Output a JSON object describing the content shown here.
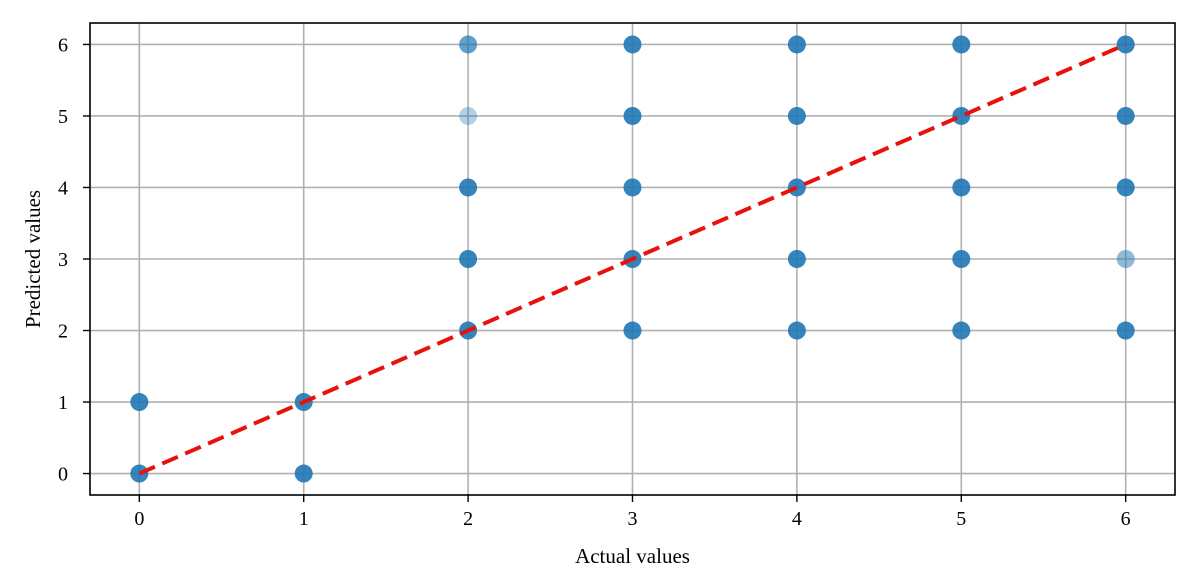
{
  "chart_data": {
    "type": "scatter",
    "title": "",
    "xlabel": "Actual values",
    "ylabel": "Predicted values",
    "xlim": [
      -0.3,
      6.3
    ],
    "ylim": [
      -0.3,
      6.3
    ],
    "xticks": [
      0,
      1,
      2,
      3,
      4,
      5,
      6
    ],
    "yticks": [
      0,
      1,
      2,
      3,
      4,
      5,
      6
    ],
    "grid": true,
    "point_color": "#1f77b4",
    "reference_line": {
      "style": "dashed",
      "color": "#e8120c",
      "x": [
        0,
        6
      ],
      "y": [
        0,
        6
      ]
    },
    "points": [
      {
        "x": 0,
        "y": 0,
        "alpha": 0.9
      },
      {
        "x": 0,
        "y": 1,
        "alpha": 0.9
      },
      {
        "x": 1,
        "y": 0,
        "alpha": 0.9
      },
      {
        "x": 1,
        "y": 1,
        "alpha": 0.9
      },
      {
        "x": 2,
        "y": 2,
        "alpha": 0.9
      },
      {
        "x": 2,
        "y": 3,
        "alpha": 0.9
      },
      {
        "x": 2,
        "y": 4,
        "alpha": 0.9
      },
      {
        "x": 2,
        "y": 5,
        "alpha": 0.35
      },
      {
        "x": 2,
        "y": 6,
        "alpha": 0.7
      },
      {
        "x": 3,
        "y": 2,
        "alpha": 0.9
      },
      {
        "x": 3,
        "y": 3,
        "alpha": 0.9
      },
      {
        "x": 3,
        "y": 4,
        "alpha": 0.9
      },
      {
        "x": 3,
        "y": 5,
        "alpha": 0.9
      },
      {
        "x": 3,
        "y": 6,
        "alpha": 0.9
      },
      {
        "x": 4,
        "y": 2,
        "alpha": 0.9
      },
      {
        "x": 4,
        "y": 3,
        "alpha": 0.9
      },
      {
        "x": 4,
        "y": 4,
        "alpha": 0.9
      },
      {
        "x": 4,
        "y": 5,
        "alpha": 0.9
      },
      {
        "x": 4,
        "y": 6,
        "alpha": 0.9
      },
      {
        "x": 5,
        "y": 2,
        "alpha": 0.9
      },
      {
        "x": 5,
        "y": 3,
        "alpha": 0.9
      },
      {
        "x": 5,
        "y": 4,
        "alpha": 0.9
      },
      {
        "x": 5,
        "y": 5,
        "alpha": 0.9
      },
      {
        "x": 5,
        "y": 6,
        "alpha": 0.9
      },
      {
        "x": 6,
        "y": 2,
        "alpha": 0.9
      },
      {
        "x": 6,
        "y": 3,
        "alpha": 0.5
      },
      {
        "x": 6,
        "y": 4,
        "alpha": 0.9
      },
      {
        "x": 6,
        "y": 5,
        "alpha": 0.9
      },
      {
        "x": 6,
        "y": 6,
        "alpha": 0.9
      }
    ]
  }
}
